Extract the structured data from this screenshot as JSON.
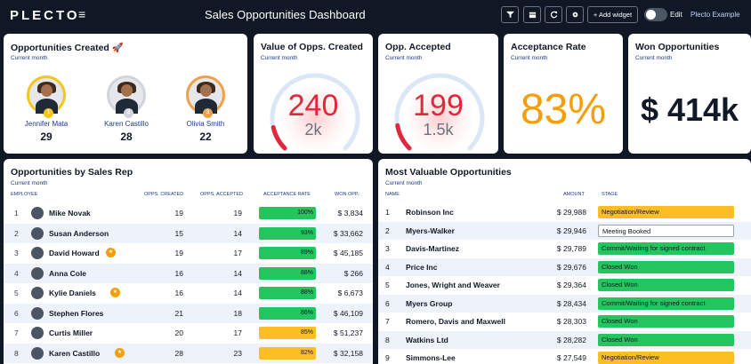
{
  "topbar": {
    "logo": "PLECTO",
    "menu_icon": "≡",
    "title": "Sales Opportunities Dashboard",
    "add_widget_label": "+ Add widget",
    "edit_label": "Edit",
    "account_label": "Plecto Example"
  },
  "opps_created": {
    "title": "Opportunities Created 🚀",
    "subtitle": "Current month",
    "people": [
      {
        "rank": "1",
        "name": "Jennifer Mata",
        "value": "29",
        "ring": "#f5c518"
      },
      {
        "rank": "2",
        "name": "Karen Castillo",
        "value": "28",
        "ring": "#d1d5db"
      },
      {
        "rank": "3",
        "name": "Olivia Smith",
        "value": "22",
        "ring": "#f0a04b"
      }
    ]
  },
  "value_opps": {
    "title": "Value of Opps. Created",
    "subtitle": "Current month",
    "value": "240",
    "target": "2k",
    "progress": 0.12
  },
  "opp_accepted": {
    "title": "Opp. Accepted",
    "subtitle": "Current month",
    "value": "199",
    "target": "1.5k",
    "progress": 0.13
  },
  "acceptance_rate": {
    "title": "Acceptance Rate",
    "subtitle": "Current month",
    "value": "83%"
  },
  "won_opps": {
    "title": "Won Opportunities",
    "subtitle": "Current month",
    "value": "$ 414k"
  },
  "by_rep": {
    "title": "Opportunities by Sales Rep",
    "subtitle": "Current month",
    "headers": {
      "employee": "EMPLOYEE",
      "created": "OPPS. CREATED",
      "accepted": "OPPS. ACCEPTED",
      "rate": "ACCEPTANCE RATE",
      "won": "WON OPP."
    },
    "rows": [
      {
        "rank": "1",
        "name": "Mike Novak",
        "created": "19",
        "accepted": "19",
        "rate": "100%",
        "rate_value": 100,
        "rate_color": "#22c55e",
        "won": "$ 3,834",
        "badge": false
      },
      {
        "rank": "2",
        "name": "Susan Anderson",
        "created": "15",
        "accepted": "14",
        "rate": "93%",
        "rate_value": 93,
        "rate_color": "#22c55e",
        "won": "$ 33,662",
        "badge": false
      },
      {
        "rank": "3",
        "name": "David Howard",
        "created": "19",
        "accepted": "17",
        "rate": "89%",
        "rate_value": 89,
        "rate_color": "#22c55e",
        "won": "$ 45,185",
        "badge": true
      },
      {
        "rank": "4",
        "name": "Anna Cole",
        "created": "16",
        "accepted": "14",
        "rate": "88%",
        "rate_value": 88,
        "rate_color": "#22c55e",
        "won": "$ 266",
        "badge": false
      },
      {
        "rank": "5",
        "name": "Kylie Daniels",
        "created": "16",
        "accepted": "14",
        "rate": "88%",
        "rate_value": 88,
        "rate_color": "#22c55e",
        "won": "$ 6,673",
        "badge": true
      },
      {
        "rank": "6",
        "name": "Stephen Flores",
        "created": "21",
        "accepted": "18",
        "rate": "86%",
        "rate_value": 86,
        "rate_color": "#22c55e",
        "won": "$ 46,109",
        "badge": false
      },
      {
        "rank": "7",
        "name": "Curtis Miller",
        "created": "20",
        "accepted": "17",
        "rate": "85%",
        "rate_value": 85,
        "rate_color": "#fbbf24",
        "won": "$ 51,237",
        "badge": false
      },
      {
        "rank": "8",
        "name": "Karen Castillo",
        "created": "28",
        "accepted": "23",
        "rate": "82%",
        "rate_value": 82,
        "rate_color": "#fbbf24",
        "won": "$ 32,158",
        "badge": true
      }
    ]
  },
  "most_valuable": {
    "title": "Most Valuable Opportunities",
    "subtitle": "Current month",
    "headers": {
      "name": "NAME",
      "amount": "AMOUNT",
      "stage": "STAGE"
    },
    "rows": [
      {
        "rank": "1",
        "name": "Robinson Inc",
        "amount": "$ 29,988",
        "stage": "Negotiation/Review",
        "stage_color": "#fbbf24"
      },
      {
        "rank": "2",
        "name": "Myers-Walker",
        "amount": "$ 29,946",
        "stage": "Meeting Booked",
        "stage_color": "#ffffff"
      },
      {
        "rank": "3",
        "name": "Davis-Martinez",
        "amount": "$ 29,789",
        "stage": "Commit/Waiting for signed contract",
        "stage_color": "#22c55e"
      },
      {
        "rank": "4",
        "name": "Price Inc",
        "amount": "$ 29,676",
        "stage": "Closed Won",
        "stage_color": "#22c55e"
      },
      {
        "rank": "5",
        "name": "Jones, Wright and Weaver",
        "amount": "$ 29,364",
        "stage": "Closed Won",
        "stage_color": "#22c55e"
      },
      {
        "rank": "6",
        "name": "Myers Group",
        "amount": "$ 28,434",
        "stage": "Commit/Waiting for signed contract",
        "stage_color": "#22c55e"
      },
      {
        "rank": "7",
        "name": "Romero, Davis and Maxwell",
        "amount": "$ 28,303",
        "stage": "Closed Won",
        "stage_color": "#22c55e"
      },
      {
        "rank": "8",
        "name": "Watkins Ltd",
        "amount": "$ 28,282",
        "stage": "Closed Won",
        "stage_color": "#22c55e"
      },
      {
        "rank": "9",
        "name": "Simmons-Lee",
        "amount": "$ 27,549",
        "stage": "Negotiation/Review",
        "stage_color": "#fbbf24"
      }
    ]
  }
}
